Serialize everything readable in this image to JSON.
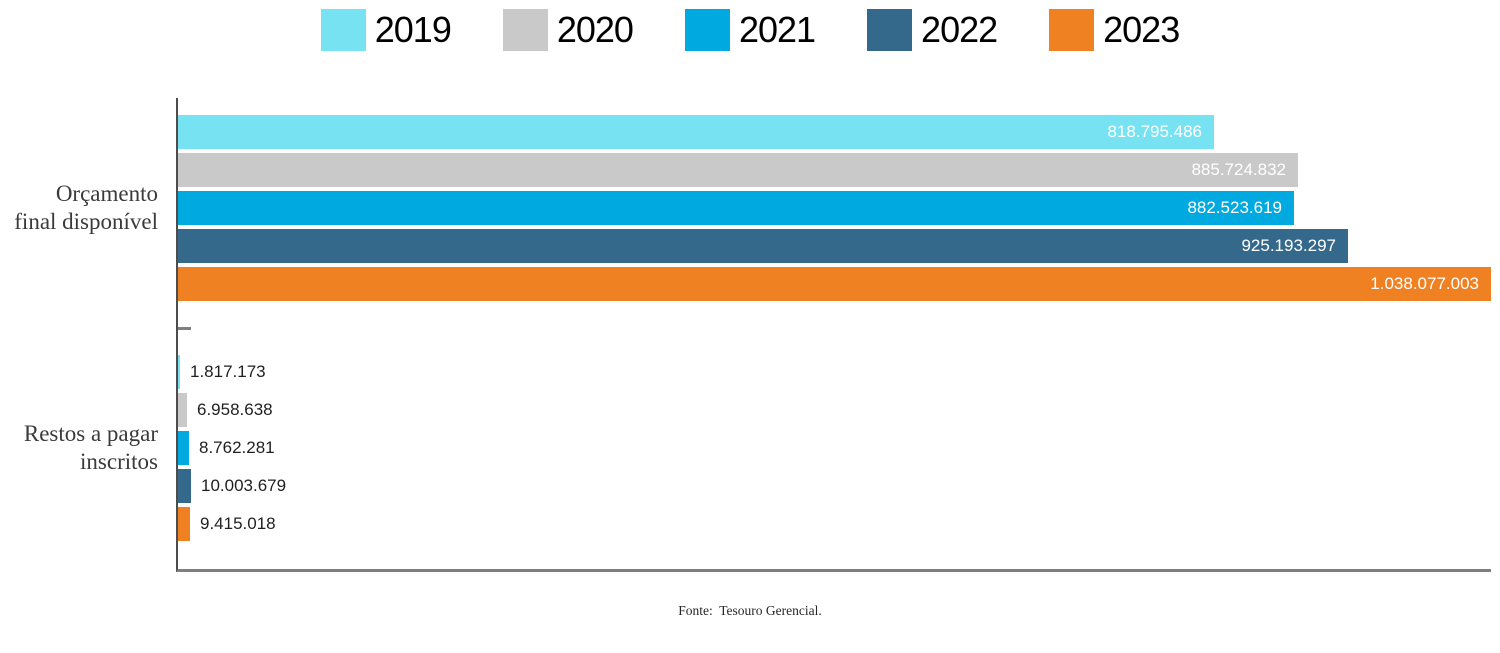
{
  "chart_data": {
    "type": "bar",
    "orientation": "horizontal",
    "title": "",
    "xlabel": "",
    "ylabel": "",
    "xlim": [
      0,
      1038077003
    ],
    "grid": false,
    "legend_position": "top",
    "categories": [
      {
        "id": "orcamento-final-disponivel",
        "label_lines": [
          "Orçamento",
          "final disponível"
        ]
      },
      {
        "id": "restos-a-pagar-inscritos",
        "label_lines": [
          "Restos a pagar",
          "inscritos"
        ]
      }
    ],
    "series": [
      {
        "name": "2019",
        "color": "#76e2f2",
        "values": [
          818795486,
          1817173
        ],
        "value_labels": [
          "818.795.486",
          "1.817.173"
        ]
      },
      {
        "name": "2020",
        "color": "#c9c9c9",
        "values": [
          885724832,
          6958638
        ],
        "value_labels": [
          "885.724.832",
          "6.958.638"
        ]
      },
      {
        "name": "2021",
        "color": "#00a9e0",
        "values": [
          882523619,
          8762281
        ],
        "value_labels": [
          "882.523.619",
          "8.762.281"
        ]
      },
      {
        "name": "2022",
        "color": "#35698b",
        "values": [
          925193297,
          10003679
        ],
        "value_labels": [
          "925.193.297",
          "10.003.679"
        ]
      },
      {
        "name": "2023",
        "color": "#f08123",
        "values": [
          1038077003,
          9415018
        ],
        "value_labels": [
          "1.038.077.003",
          "9.415.018"
        ]
      }
    ],
    "source": "Fonte:  Tesouro Gerencial."
  },
  "colors": {
    "axis_left": "#4d4d4d",
    "axis_bottom": "#7f7f7f",
    "label_inside": "#ffffff",
    "label_outside": "#1f1f1f"
  }
}
